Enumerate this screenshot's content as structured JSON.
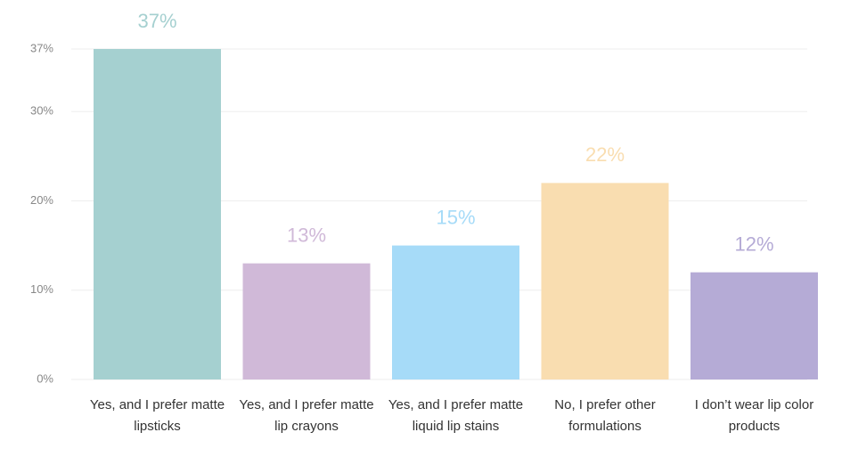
{
  "chart_data": {
    "type": "bar",
    "categories": [
      "Yes, and I prefer matte lipsticks",
      "Yes, and I prefer matte lip crayons",
      "Yes, and I prefer matte liquid lip stains",
      "No, I prefer other formulations",
      "I don’t wear lip color products"
    ],
    "values": [
      37,
      13,
      15,
      22,
      12
    ],
    "value_labels": [
      "37%",
      "13%",
      "15%",
      "22%",
      "12%"
    ],
    "colors": [
      "#a5d0d0",
      "#d0b9d8",
      "#a6dbf8",
      "#f9ddb0",
      "#b5abd6"
    ],
    "ylim": [
      0,
      37
    ],
    "yticks": [
      {
        "value": 0,
        "label": "0%"
      },
      {
        "value": 10,
        "label": "10%"
      },
      {
        "value": 20,
        "label": "20%"
      },
      {
        "value": 30,
        "label": "30%"
      },
      {
        "value": 37,
        "label": "37%"
      }
    ],
    "grid": true
  }
}
